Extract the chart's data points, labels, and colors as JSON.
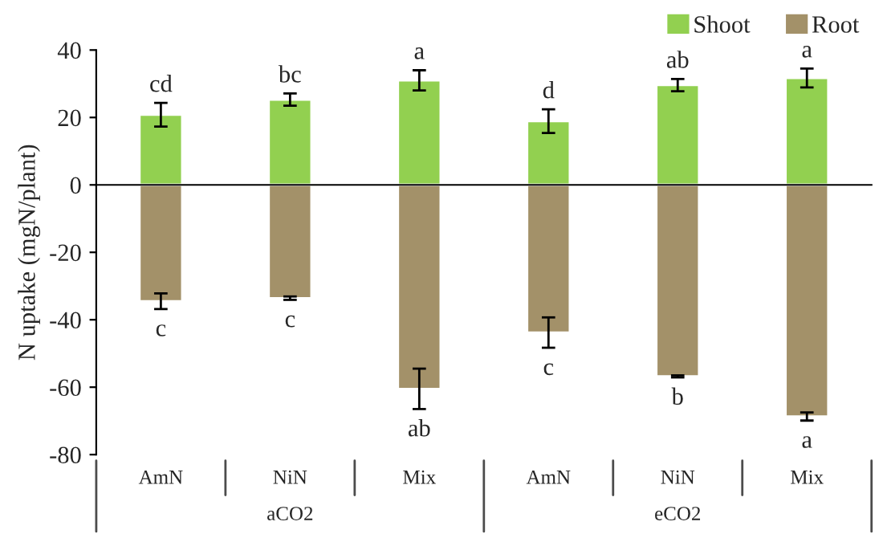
{
  "chart_data": {
    "type": "bar",
    "ylabel": "N uptake (mgN/plant)",
    "categories": [
      "AmN",
      "NiN",
      "Mix",
      "AmN",
      "NiN",
      "Mix"
    ],
    "annotations": [
      "aCO2",
      "eCO2"
    ],
    "series": [
      {
        "name": "Shoot",
        "color": "#92d050",
        "values": [
          20.8,
          25.3,
          31.0,
          18.9,
          29.6,
          31.7
        ],
        "errors": [
          3.5,
          1.8,
          3.0,
          3.5,
          1.8,
          2.8
        ],
        "value_labels": [
          "cd",
          "bc",
          "a",
          "d",
          "ab",
          "a"
        ]
      },
      {
        "name": "Root",
        "color": "#a39169",
        "values": [
          -34.5,
          -33.6,
          -60.5,
          -43.8,
          -56.8,
          -68.7
        ],
        "errors": [
          2.3,
          0.5,
          6.0,
          4.5,
          0.3,
          1.2
        ],
        "value_labels": [
          "c",
          "c",
          "ab",
          "c",
          "b",
          "a"
        ]
      }
    ],
    "ylim": [
      -80,
      40
    ],
    "yticks": [
      -80,
      -60,
      -40,
      -20,
      0,
      20,
      40
    ],
    "stacked": true,
    "legend": "top right"
  }
}
